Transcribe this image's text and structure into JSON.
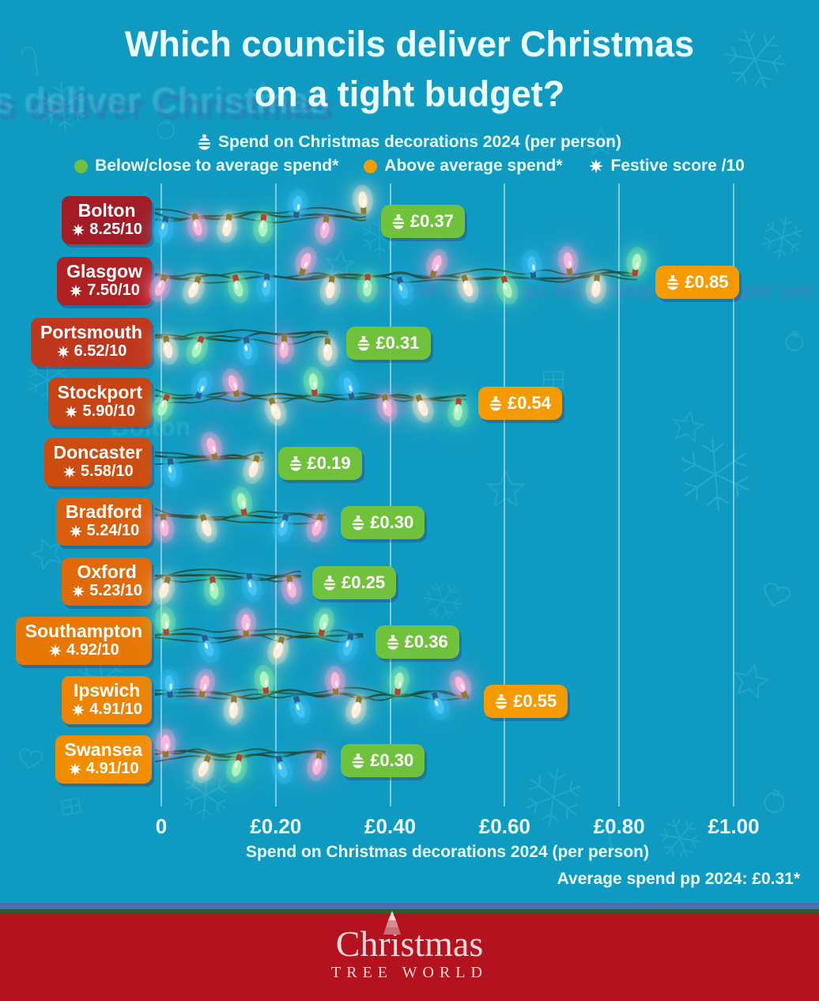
{
  "title": {
    "line1": "Which councils deliver Christmas",
    "line2": "on a tight budget?"
  },
  "legend": {
    "spend_label": "Spend on Christmas decorations 2024 (per person)",
    "below_label": "Below/close to average spend*",
    "above_label": "Above average spend*",
    "festive_label": "Festive score /10"
  },
  "chart_data": {
    "type": "bar",
    "title": "Which councils deliver Christmas on a tight budget?",
    "xlabel": "Spend on Christmas decorations 2024 (per person)",
    "xlim": [
      0,
      1.0
    ],
    "x_ticks": [
      "0",
      "£0.20",
      "£0.40",
      "£0.60",
      "£0.80",
      "£1.00"
    ],
    "x_tick_values": [
      0,
      0.2,
      0.4,
      0.6,
      0.8,
      1.0
    ],
    "grid": "vertical",
    "average_note": "Average spend pp 2024: £0.31*",
    "average_value": 0.31,
    "rows": [
      {
        "council": "Bolton",
        "festive_score": "8.25/10",
        "spend": 0.37,
        "spend_label": "£0.37",
        "category": "below",
        "label_color": "#a31b24"
      },
      {
        "council": "Glasgow",
        "festive_score": "7.50/10",
        "spend": 0.85,
        "spend_label": "£0.85",
        "category": "above",
        "label_color": "#af2023"
      },
      {
        "council": "Portsmouth",
        "festive_score": "6.52/10",
        "spend": 0.31,
        "spend_label": "£0.31",
        "category": "below",
        "label_color": "#bf381d"
      },
      {
        "council": "Stockport",
        "festive_score": "5.90/10",
        "spend": 0.54,
        "spend_label": "£0.54",
        "category": "above",
        "label_color": "#c64414"
      },
      {
        "council": "Doncaster",
        "festive_score": "5.58/10",
        "spend": 0.19,
        "spend_label": "£0.19",
        "category": "below",
        "label_color": "#cd4d11"
      },
      {
        "council": "Bradford",
        "festive_score": "5.24/10",
        "spend": 0.3,
        "spend_label": "£0.30",
        "category": "below",
        "label_color": "#d95f0d"
      },
      {
        "council": "Oxford",
        "festive_score": "5.23/10",
        "spend": 0.25,
        "spend_label": "£0.25",
        "category": "below",
        "label_color": "#e06a09"
      },
      {
        "council": "Southampton",
        "festive_score": "4.92/10",
        "spend": 0.36,
        "spend_label": "£0.36",
        "category": "below",
        "label_color": "#e77806"
      },
      {
        "council": "Ipswich",
        "festive_score": "4.91/10",
        "spend": 0.55,
        "spend_label": "£0.55",
        "category": "above",
        "label_color": "#ed8403"
      },
      {
        "council": "Swansea",
        "festive_score": "4.91/10",
        "spend": 0.3,
        "spend_label": "£0.30",
        "category": "below",
        "label_color": "#f18e00"
      }
    ]
  },
  "footer": {
    "brand_line1": "Christmas",
    "brand_line2": "TREE WORLD"
  },
  "theme": {
    "background": "#0f9ac1",
    "below_color": "#70c23c",
    "above_color": "#f59b00",
    "footer_red": "#b4121e",
    "wire_color": "#17432e",
    "text_color": "#eafdff",
    "bulb_colors": [
      "#f9b8dc",
      "#fdeedd",
      "#aef3c1",
      "#45c5f5"
    ]
  }
}
